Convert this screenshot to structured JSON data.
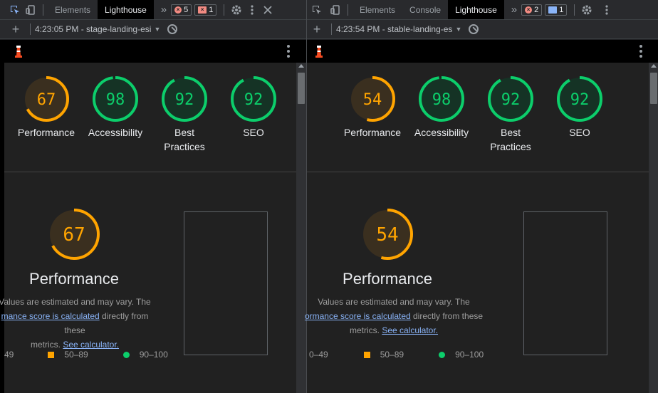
{
  "left": {
    "tabs": [
      "Elements",
      "Lighthouse"
    ],
    "active_tab": "Lighthouse",
    "errors_count": "5",
    "issues_count": "1",
    "report_label": "4:23:05 PM - stage-landing-esi",
    "scores": [
      {
        "name": "Performance",
        "value": "67",
        "fraction": 0.67
      },
      {
        "name": "Accessibility",
        "value": "98",
        "fraction": 0.98
      },
      {
        "name": "Best Practices",
        "value": "92",
        "fraction": 0.92
      },
      {
        "name": "SEO",
        "value": "92",
        "fraction": 0.92
      }
    ],
    "perf": {
      "value": "67",
      "fraction": 0.67,
      "title": "Performance"
    },
    "desc_line1": "Values are estimated and may vary. The",
    "desc_link1": "mance score is calculated",
    "desc_line2_tail": " directly from these",
    "desc_line3_head": "metrics. ",
    "desc_link2": "See calculator.",
    "legend": [
      "49",
      "50–89",
      "90–100"
    ]
  },
  "right": {
    "tabs": [
      "Elements",
      "Console",
      "Lighthouse"
    ],
    "active_tab": "Lighthouse",
    "errors_count": "2",
    "messages_count": "1",
    "report_label": "4:23:54 PM - stable-landing-es",
    "scores": [
      {
        "name": "Performance",
        "value": "54",
        "fraction": 0.54
      },
      {
        "name": "Accessibility",
        "value": "98",
        "fraction": 0.98
      },
      {
        "name": "Best Practices",
        "value": "92",
        "fraction": 0.92
      },
      {
        "name": "SEO",
        "value": "92",
        "fraction": 0.92
      }
    ],
    "perf": {
      "value": "54",
      "fraction": 0.54,
      "title": "Performance"
    },
    "desc_line1": "Values are estimated and may vary. The",
    "desc_link1": "ormance score is calculated",
    "desc_line2_tail": " directly from these",
    "desc_line3_head": "metrics. ",
    "desc_link2": "See calculator.",
    "legend": [
      "0–49",
      "50–89",
      "90–100"
    ]
  },
  "colors": {
    "average": "#ffa400",
    "pass": "#0cce6b",
    "avg_bg": "#3a2f1f",
    "pass_bg": "#153325"
  }
}
